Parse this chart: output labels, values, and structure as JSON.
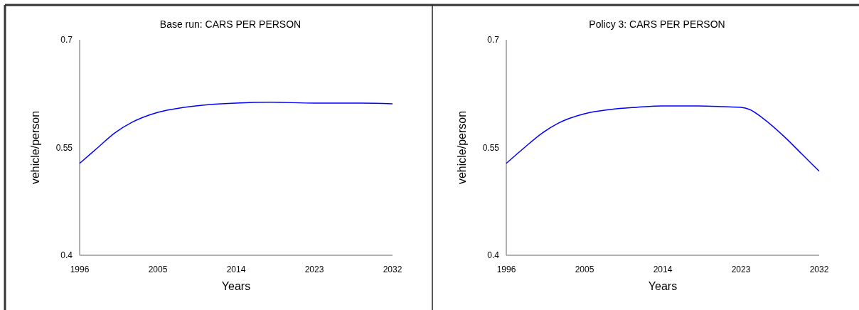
{
  "chart_data": [
    {
      "type": "line",
      "title": "Base run: CARS PER PERSON",
      "xlabel": "Years",
      "ylabel": "vehicle/person",
      "xlim": [
        1996,
        2032
      ],
      "xticks": [
        1996,
        2005,
        2014,
        2023,
        2032
      ],
      "ylim": [
        0.4,
        0.7
      ],
      "yticks": [
        0.4,
        0.55,
        0.7
      ],
      "series": [
        {
          "color": "#0000ff",
          "x": [
            1996,
            1998,
            2000,
            2002,
            2005,
            2008,
            2011,
            2014,
            2018,
            2023,
            2028,
            2032
          ],
          "values": [
            0.528,
            0.549,
            0.57,
            0.585,
            0.599,
            0.606,
            0.61,
            0.612,
            0.613,
            0.612,
            0.612,
            0.611
          ]
        }
      ]
    },
    {
      "type": "line",
      "title": "Policy 3: CARS PER PERSON",
      "xlabel": "Years",
      "ylabel": "vehicle/person",
      "xlim": [
        1996,
        2032
      ],
      "xticks": [
        1996,
        2005,
        2014,
        2023,
        2032
      ],
      "ylim": [
        0.4,
        0.7
      ],
      "yticks": [
        0.4,
        0.55,
        0.7
      ],
      "series": [
        {
          "color": "#0000ff",
          "x": [
            1996,
            1998,
            2000,
            2002,
            2005,
            2008,
            2011,
            2014,
            2018,
            2021,
            2023,
            2024,
            2025.5,
            2028,
            2030,
            2032
          ],
          "values": [
            0.528,
            0.549,
            0.569,
            0.584,
            0.597,
            0.603,
            0.606,
            0.608,
            0.608,
            0.607,
            0.606,
            0.603,
            0.591,
            0.565,
            0.541,
            0.517
          ]
        }
      ]
    }
  ]
}
